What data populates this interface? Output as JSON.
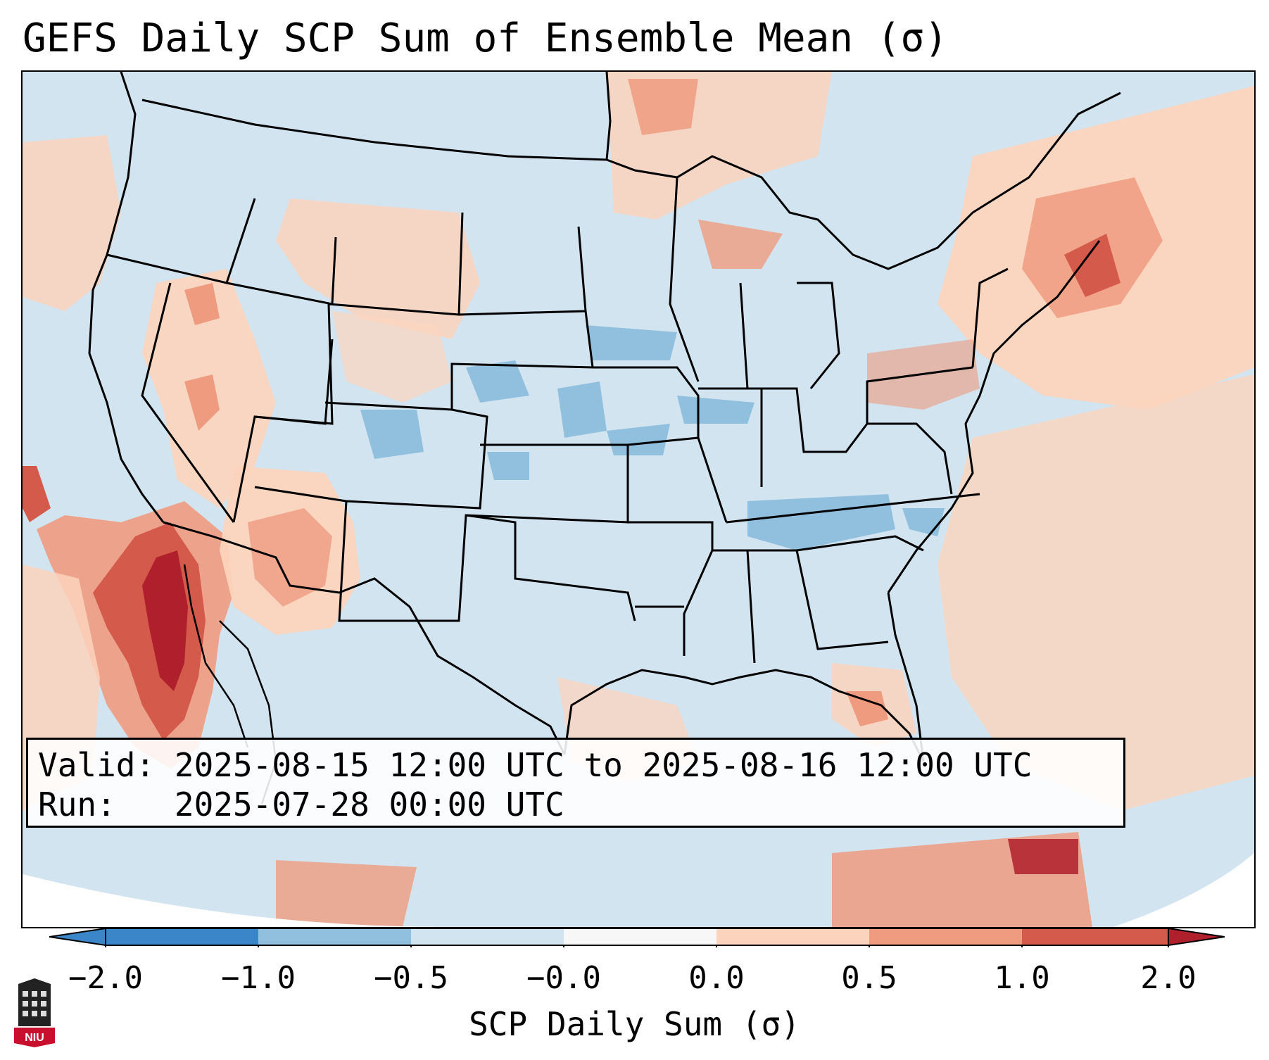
{
  "title": "GEFS Daily SCP Sum of Ensemble Mean (σ)",
  "info": {
    "valid_label": "Valid:",
    "valid_value": "2025-08-15 12:00 UTC to 2025-08-16 12:00 UTC",
    "run_label": "Run:",
    "run_value": "2025-07-28 00:00 UTC"
  },
  "colorbar": {
    "label": "SCP Daily Sum (σ)",
    "ticks": [
      "−2.0",
      "−1.0",
      "−0.5",
      "−0.0",
      "0.0",
      "0.5",
      "1.0",
      "2.0"
    ],
    "colors": [
      "#3a86c8",
      "#90c0de",
      "#d2e4f0",
      "#f7f7f7",
      "#fcd4bd",
      "#ef9b7f",
      "#d45a4c",
      "#b0202c"
    ]
  },
  "logo": {
    "text": "NIU",
    "color": "#c8102e"
  }
}
